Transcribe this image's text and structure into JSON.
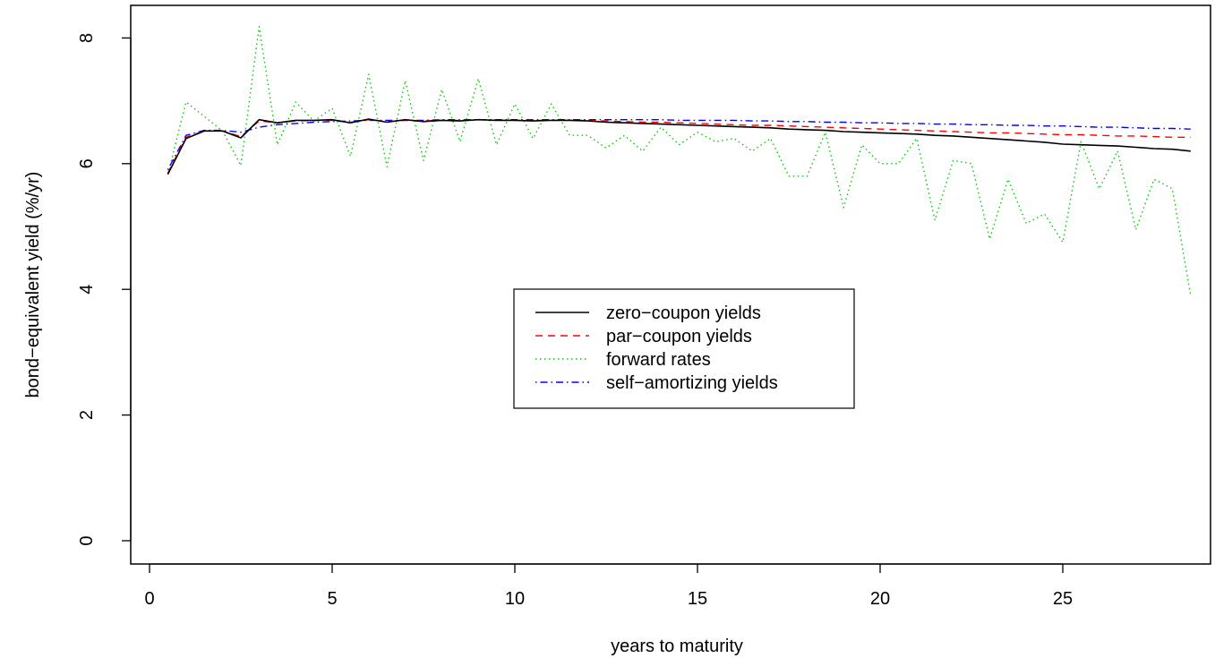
{
  "chart_data": {
    "type": "line",
    "xlabel": "years to maturity",
    "ylabel": "bond−equivalent yield (%/yr)",
    "xlim": [
      0,
      28.5
    ],
    "ylim": [
      0,
      8
    ],
    "x_ticks": [
      "0",
      "5",
      "10",
      "15",
      "20",
      "25"
    ],
    "x_tick_values": [
      0,
      5,
      10,
      15,
      20,
      25
    ],
    "y_ticks": [
      "0",
      "2",
      "4",
      "6",
      "8"
    ],
    "y_tick_values": [
      0,
      2,
      4,
      6,
      8
    ],
    "grid": false,
    "legend_position": "center",
    "x": [
      0.5,
      1,
      1.5,
      2,
      2.5,
      3,
      3.5,
      4,
      4.5,
      5,
      5.5,
      6,
      6.5,
      7,
      7.5,
      8,
      8.5,
      9,
      9.5,
      10,
      10.5,
      11,
      11.5,
      12,
      12.5,
      13,
      13.5,
      14,
      14.5,
      15,
      15.5,
      16,
      16.5,
      17,
      17.5,
      18,
      18.5,
      19,
      19.5,
      20,
      20.5,
      21,
      21.5,
      22,
      22.5,
      23,
      23.5,
      24,
      24.5,
      25,
      25.5,
      26,
      26.5,
      27,
      27.5,
      28,
      28.5
    ],
    "series": [
      {
        "name": "zero−coupon yields",
        "color": "#000000",
        "dash": "solid",
        "values": [
          5.83,
          6.4,
          6.52,
          6.52,
          6.41,
          6.7,
          6.65,
          6.69,
          6.69,
          6.7,
          6.65,
          6.71,
          6.66,
          6.7,
          6.67,
          6.69,
          6.68,
          6.7,
          6.69,
          6.69,
          6.68,
          6.69,
          6.69,
          6.68,
          6.66,
          6.65,
          6.64,
          6.63,
          6.62,
          6.61,
          6.6,
          6.59,
          6.58,
          6.57,
          6.55,
          6.54,
          6.53,
          6.51,
          6.5,
          6.49,
          6.48,
          6.47,
          6.45,
          6.44,
          6.42,
          6.4,
          6.38,
          6.36,
          6.34,
          6.31,
          6.3,
          6.29,
          6.28,
          6.26,
          6.24,
          6.23,
          6.2
        ]
      },
      {
        "name": "par−coupon yields",
        "color": "#ff0000",
        "dash": "dashed",
        "values": [
          5.85,
          6.42,
          6.52,
          6.52,
          6.43,
          6.68,
          6.65,
          6.68,
          6.69,
          6.69,
          6.66,
          6.7,
          6.67,
          6.69,
          6.68,
          6.69,
          6.69,
          6.7,
          6.69,
          6.69,
          6.69,
          6.69,
          6.69,
          6.69,
          6.68,
          6.67,
          6.66,
          6.66,
          6.65,
          6.64,
          6.63,
          6.62,
          6.61,
          6.61,
          6.6,
          6.59,
          6.58,
          6.57,
          6.56,
          6.55,
          6.54,
          6.53,
          6.52,
          6.51,
          6.5,
          6.49,
          6.49,
          6.48,
          6.47,
          6.46,
          6.46,
          6.45,
          6.44,
          6.44,
          6.43,
          6.42,
          6.42
        ]
      },
      {
        "name": "forward rates",
        "color": "#00cc00",
        "dash": "dotted",
        "values": [
          5.83,
          6.98,
          6.75,
          6.52,
          5.97,
          8.18,
          6.3,
          6.98,
          6.68,
          6.88,
          6.12,
          7.42,
          5.95,
          7.32,
          6.05,
          7.18,
          6.35,
          7.35,
          6.3,
          6.95,
          6.4,
          6.95,
          6.45,
          6.45,
          6.25,
          6.45,
          6.2,
          6.58,
          6.3,
          6.5,
          6.35,
          6.4,
          6.2,
          6.4,
          5.8,
          5.8,
          6.5,
          5.3,
          6.3,
          6.0,
          6.0,
          6.4,
          5.1,
          6.05,
          6.0,
          4.8,
          5.75,
          5.05,
          5.2,
          4.75,
          6.35,
          5.6,
          6.2,
          4.95,
          5.75,
          5.6,
          3.9
        ]
      },
      {
        "name": "self−amortizing yields",
        "color": "#0000ff",
        "dash": "dotdash",
        "values": [
          5.9,
          6.45,
          6.53,
          6.53,
          6.5,
          6.58,
          6.62,
          6.64,
          6.66,
          6.67,
          6.68,
          6.69,
          6.69,
          6.69,
          6.69,
          6.7,
          6.7,
          6.7,
          6.7,
          6.7,
          6.7,
          6.7,
          6.7,
          6.7,
          6.7,
          6.7,
          6.7,
          6.7,
          6.69,
          6.69,
          6.69,
          6.69,
          6.68,
          6.68,
          6.67,
          6.67,
          6.66,
          6.66,
          6.65,
          6.65,
          6.64,
          6.64,
          6.63,
          6.63,
          6.62,
          6.62,
          6.61,
          6.61,
          6.6,
          6.6,
          6.59,
          6.58,
          6.58,
          6.57,
          6.56,
          6.56,
          6.55
        ]
      }
    ]
  }
}
